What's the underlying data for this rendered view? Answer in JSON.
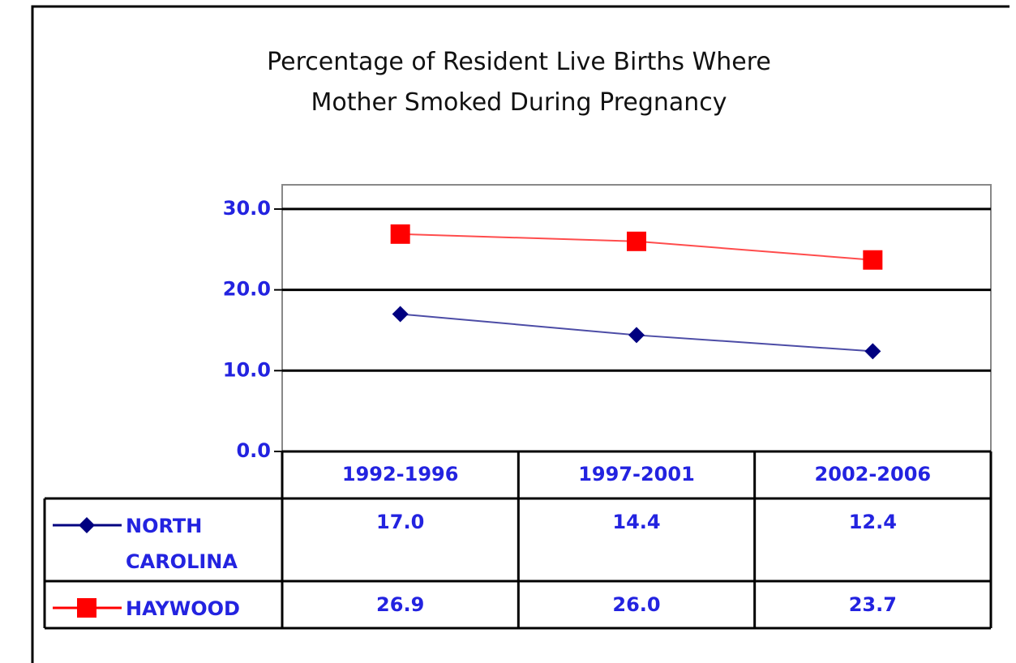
{
  "chart_data": {
    "type": "line",
    "title": "Percentage of Resident Live Births Where Mother Smoked During Pregnancy",
    "categories": [
      "1992-1996",
      "1997-2001",
      "2002-2006"
    ],
    "series": [
      {
        "name": "NORTH CAROLINA",
        "color": "#000080",
        "marker": "diamond",
        "values": [
          17.0,
          14.4,
          12.4
        ],
        "value_labels": [
          "17.0",
          "14.4",
          "12.4"
        ]
      },
      {
        "name": "HAYWOOD",
        "color": "#ff0000",
        "marker": "square",
        "values": [
          26.9,
          26.0,
          23.7
        ],
        "value_labels": [
          "26.9",
          "26.0",
          "23.7"
        ]
      }
    ],
    "ylim": [
      0,
      33
    ],
    "yticks": [
      {
        "value": 0,
        "label": "0.0"
      },
      {
        "value": 10,
        "label": "10.0"
      },
      {
        "value": 20,
        "label": "20.0"
      },
      {
        "value": 30,
        "label": "30.0"
      }
    ],
    "grid": true
  }
}
